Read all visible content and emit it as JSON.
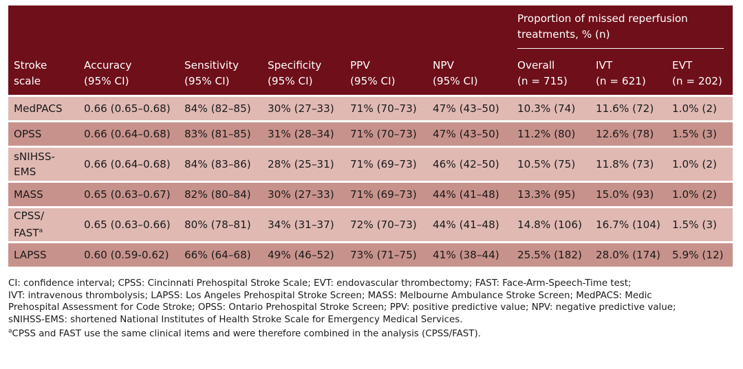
{
  "header": {
    "group": "Proportion of missed reperfusion treatments, % (n)",
    "columns": [
      {
        "line1": "Stroke",
        "line2": "scale"
      },
      {
        "line1": "Accuracy",
        "line2": "(95% CI)"
      },
      {
        "line1": "Sensitivity",
        "line2": "(95% CI)"
      },
      {
        "line1": "Specificity",
        "line2": "(95% CI)"
      },
      {
        "line1": "PPV",
        "line2": "(95% CI)"
      },
      {
        "line1": "NPV",
        "line2": "(95% CI)"
      },
      {
        "line1": "Overall",
        "line2": "(n = 715)"
      },
      {
        "line1": "IVT",
        "line2": "(n = 621)"
      },
      {
        "line1": "EVT",
        "line2": "(n = 202)"
      }
    ]
  },
  "rows": [
    {
      "scale": "MedPACS",
      "scale2": "",
      "sup": "",
      "cells": [
        "0.66 (0.65–0.68)",
        "84% (82–85)",
        "30% (27–33)",
        "71% (70–73)",
        "47% (43–50)",
        "10.3% (74)",
        "11.6% (72)",
        "1.0% (2)"
      ]
    },
    {
      "scale": "OPSS",
      "scale2": "",
      "sup": "",
      "cells": [
        "0.66 (0.64–0.68)",
        "83% (81–85)",
        "31% (28–34)",
        "71% (70–73)",
        "47% (43–50)",
        "11.2% (80)",
        "12.6% (78)",
        "1.5% (3)"
      ]
    },
    {
      "scale": "sNIHSS-",
      "scale2": "EMS",
      "sup": "",
      "cells": [
        "0.66 (0.64–0.68)",
        "84% (83–86)",
        "28% (25–31)",
        "71% (69–73)",
        "46% (42–50)",
        "10.5% (75)",
        "11.8% (73)",
        "1.0% (2)"
      ]
    },
    {
      "scale": "MASS",
      "scale2": "",
      "sup": "",
      "cells": [
        "0.65 (0.63–0.67)",
        "82% (80–84)",
        "30% (27–33)",
        "71% (69–73)",
        "44% (41–48)",
        "13.3% (95)",
        "15.0% (93)",
        "1.0% (2)"
      ]
    },
    {
      "scale": "CPSS/",
      "scale2": "FAST",
      "sup": "a",
      "cells": [
        "0.65 (0.63–0.66)",
        "80% (78–81)",
        "34% (31–37)",
        "72% (70–73)",
        "44% (41–48)",
        "14.8% (106)",
        "16.7% (104)",
        "1.5% (3)"
      ]
    },
    {
      "scale": "LAPSS",
      "scale2": "",
      "sup": "",
      "cells": [
        "0.60 (0.59-0.62)",
        "66% (64–68)",
        "49% (46–52)",
        "73% (71–75)",
        "41% (38–44)",
        "25.5% (182)",
        "28.0% (174)",
        "5.9% (12)"
      ]
    }
  ],
  "footnotes": {
    "line1": "CI: confidence interval; CPSS: Cincinnati Prehospital Stroke Scale; EVT: endovascular thrombectomy; FAST: Face-Arm-Speech-Time test;",
    "line2": "IVT: intravenous thrombolysis; LAPSS: Los Angeles Prehospital Stroke Screen; MASS: Melbourne Ambulance Stroke Screen; MedPACS: Medic",
    "line3": "Prehospital Assessment for Code Stroke; OPSS: Ontario Prehospital Stroke Screen; PPV: positive predictive value; NPV: negative predictive value;",
    "line4": "sNIHSS-EMS: shortened National Institutes of Health Stroke Scale for Emergency Medical Services.",
    "note_marker": "a",
    "note": "CPSS and FAST use the same clinical items and were therefore combined in the analysis (CPSS/FAST)."
  }
}
